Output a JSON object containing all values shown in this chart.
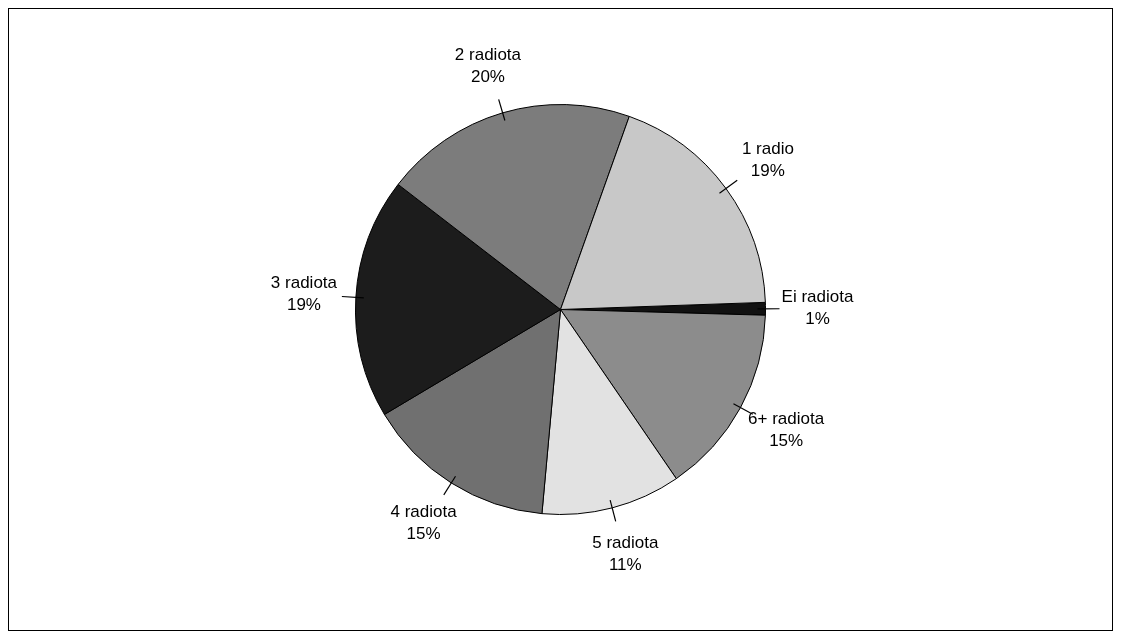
{
  "chart_data": {
    "type": "pie",
    "categories": [
      "Ei radiota",
      "6+ radiota",
      "5 radiota",
      "4 radiota",
      "3 radiota",
      "2 radiota",
      "1 radio"
    ],
    "values": [
      1,
      15,
      11,
      15,
      19,
      20,
      19
    ],
    "value_labels": [
      "1%",
      "15%",
      "11%",
      "15%",
      "19%",
      "20%",
      "19%"
    ],
    "colors": [
      "#111111",
      "#8c8c8c",
      "#e2e2e2",
      "#707070",
      "#1c1c1c",
      "#7c7c7c",
      "#c8c8c8"
    ],
    "legend": false
  }
}
